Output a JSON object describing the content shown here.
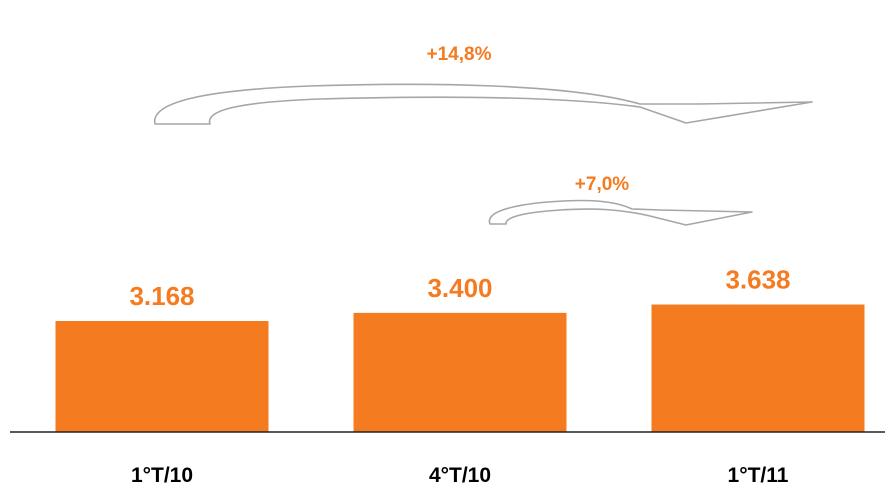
{
  "colors": {
    "bar": "#f47b20",
    "value_text": "#f47b20",
    "growth_text": "#f47b20",
    "category_text": "#000000",
    "axis": "#222222",
    "arrow_stroke": "#a6a6a6",
    "arrow_fill": "#ffffff"
  },
  "chart_data": {
    "type": "bar",
    "categories": [
      "1°T/10",
      "4°T/10",
      "1°T/11"
    ],
    "values": [
      3168,
      3400,
      3638
    ],
    "value_labels": [
      "3.168",
      "3.400",
      "3.638"
    ],
    "title": "",
    "xlabel": "",
    "ylabel": "",
    "grid": false,
    "annotations": [
      {
        "text": "+14,8%",
        "from": "1°T/10",
        "to": "1°T/11"
      },
      {
        "text": "+7,0%",
        "from": "4°T/10",
        "to": "1°T/11"
      }
    ]
  }
}
